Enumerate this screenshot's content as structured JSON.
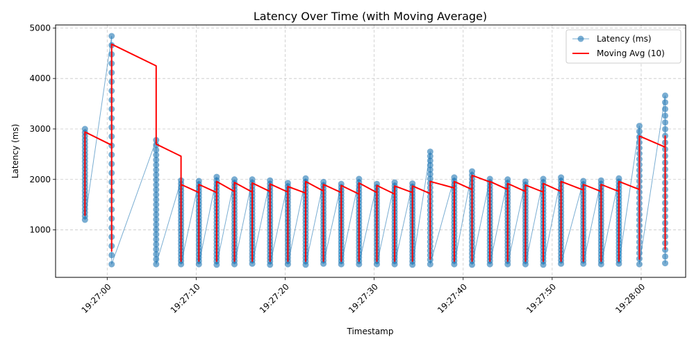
{
  "chart_data": {
    "type": "line",
    "title": "Latency Over Time (with Moving Average)",
    "xlabel": "Timestamp",
    "ylabel": "Latency (ms)",
    "x_ticks": [
      "19:27:00",
      "19:27:10",
      "19:27:20",
      "19:27:30",
      "19:27:40",
      "19:27:50",
      "19:28:00"
    ],
    "x_tick_seconds": [
      0,
      10,
      20,
      30,
      40,
      50,
      60
    ],
    "xlim_seconds": [
      -5.8,
      65.0
    ],
    "y_ticks": [
      1000,
      2000,
      3000,
      4000,
      5000
    ],
    "ylim": [
      60,
      5060
    ],
    "grid": true,
    "legend_position": "top-right",
    "colors": {
      "latency": "#1f77b4",
      "moving_avg": "#ff0000"
    },
    "series": [
      {
        "name": "Latency (ms)",
        "style": "line-marker"
      },
      {
        "name": "Moving Avg (10)",
        "style": "line"
      }
    ],
    "bursts": [
      {
        "t": -2.5,
        "min": 1200,
        "max": 3000
      },
      {
        "t": 0.5,
        "min": 320,
        "max": 4840
      },
      {
        "t": 5.5,
        "min": 320,
        "max": 2780
      },
      {
        "t": 8.3,
        "min": 320,
        "max": 1980
      },
      {
        "t": 10.3,
        "min": 320,
        "max": 1970
      },
      {
        "t": 12.3,
        "min": 310,
        "max": 2050
      },
      {
        "t": 14.3,
        "min": 320,
        "max": 2000
      },
      {
        "t": 16.3,
        "min": 330,
        "max": 2000
      },
      {
        "t": 18.3,
        "min": 310,
        "max": 1980
      },
      {
        "t": 20.3,
        "min": 320,
        "max": 1930
      },
      {
        "t": 22.3,
        "min": 310,
        "max": 2020
      },
      {
        "t": 24.3,
        "min": 330,
        "max": 1950
      },
      {
        "t": 26.3,
        "min": 320,
        "max": 1910
      },
      {
        "t": 28.3,
        "min": 320,
        "max": 2010
      },
      {
        "t": 30.3,
        "min": 320,
        "max": 1910
      },
      {
        "t": 32.3,
        "min": 320,
        "max": 1940
      },
      {
        "t": 34.3,
        "min": 310,
        "max": 1920
      },
      {
        "t": 36.3,
        "min": 320,
        "max": 2550
      },
      {
        "t": 39.0,
        "min": 320,
        "max": 2040
      },
      {
        "t": 41.0,
        "min": 310,
        "max": 2160
      },
      {
        "t": 43.0,
        "min": 320,
        "max": 2010
      },
      {
        "t": 45.0,
        "min": 320,
        "max": 2000
      },
      {
        "t": 47.0,
        "min": 320,
        "max": 1960
      },
      {
        "t": 49.0,
        "min": 310,
        "max": 2010
      },
      {
        "t": 51.0,
        "min": 330,
        "max": 2040
      },
      {
        "t": 53.5,
        "min": 330,
        "max": 1970
      },
      {
        "t": 55.5,
        "min": 320,
        "max": 1980
      },
      {
        "t": 57.5,
        "min": 330,
        "max": 2020
      },
      {
        "t": 59.8,
        "min": 320,
        "max": 3060
      },
      {
        "t": 62.7,
        "min": 340,
        "max": 3660
      }
    ],
    "moving_avg": [
      {
        "t": -2.5,
        "v": 1280
      },
      {
        "t": -2.5,
        "v": 2940
      },
      {
        "t": 0.5,
        "v": 2680
      },
      {
        "t": 0.5,
        "v": 580
      },
      {
        "t": 0.5,
        "v": 4680
      },
      {
        "t": 5.5,
        "v": 4250
      },
      {
        "t": 5.5,
        "v": 2700
      },
      {
        "t": 8.3,
        "v": 2460
      },
      {
        "t": 8.3,
        "v": 380
      },
      {
        "t": 8.3,
        "v": 1900
      },
      {
        "t": 10.3,
        "v": 1740
      },
      {
        "t": 10.3,
        "v": 380
      },
      {
        "t": 10.3,
        "v": 1900
      },
      {
        "t": 12.3,
        "v": 1740
      },
      {
        "t": 12.3,
        "v": 380
      },
      {
        "t": 12.3,
        "v": 1960
      },
      {
        "t": 14.3,
        "v": 1760
      },
      {
        "t": 14.3,
        "v": 380
      },
      {
        "t": 14.3,
        "v": 1940
      },
      {
        "t": 16.3,
        "v": 1750
      },
      {
        "t": 16.3,
        "v": 380
      },
      {
        "t": 16.3,
        "v": 1930
      },
      {
        "t": 18.3,
        "v": 1760
      },
      {
        "t": 18.3,
        "v": 380
      },
      {
        "t": 18.3,
        "v": 1910
      },
      {
        "t": 20.3,
        "v": 1750
      },
      {
        "t": 20.3,
        "v": 380
      },
      {
        "t": 20.3,
        "v": 1860
      },
      {
        "t": 22.3,
        "v": 1730
      },
      {
        "t": 22.3,
        "v": 380
      },
      {
        "t": 22.3,
        "v": 1960
      },
      {
        "t": 24.3,
        "v": 1770
      },
      {
        "t": 24.3,
        "v": 380
      },
      {
        "t": 24.3,
        "v": 1900
      },
      {
        "t": 26.3,
        "v": 1740
      },
      {
        "t": 26.3,
        "v": 380
      },
      {
        "t": 26.3,
        "v": 1880
      },
      {
        "t": 28.3,
        "v": 1710
      },
      {
        "t": 28.3,
        "v": 380
      },
      {
        "t": 28.3,
        "v": 1930
      },
      {
        "t": 30.3,
        "v": 1740
      },
      {
        "t": 30.3,
        "v": 380
      },
      {
        "t": 30.3,
        "v": 1880
      },
      {
        "t": 32.3,
        "v": 1710
      },
      {
        "t": 32.3,
        "v": 380
      },
      {
        "t": 32.3,
        "v": 1870
      },
      {
        "t": 34.3,
        "v": 1740
      },
      {
        "t": 34.3,
        "v": 380
      },
      {
        "t": 34.3,
        "v": 1870
      },
      {
        "t": 36.3,
        "v": 1720
      },
      {
        "t": 36.3,
        "v": 420
      },
      {
        "t": 36.3,
        "v": 1960
      },
      {
        "t": 39.0,
        "v": 1830
      },
      {
        "t": 39.0,
        "v": 380
      },
      {
        "t": 39.0,
        "v": 1960
      },
      {
        "t": 41.0,
        "v": 1800
      },
      {
        "t": 41.0,
        "v": 380
      },
      {
        "t": 41.0,
        "v": 2080
      },
      {
        "t": 43.0,
        "v": 1950
      },
      {
        "t": 43.0,
        "v": 380
      },
      {
        "t": 43.0,
        "v": 1960
      },
      {
        "t": 45.0,
        "v": 1800
      },
      {
        "t": 45.0,
        "v": 380
      },
      {
        "t": 45.0,
        "v": 1920
      },
      {
        "t": 47.0,
        "v": 1760
      },
      {
        "t": 47.0,
        "v": 380
      },
      {
        "t": 47.0,
        "v": 1890
      },
      {
        "t": 49.0,
        "v": 1750
      },
      {
        "t": 49.0,
        "v": 380
      },
      {
        "t": 49.0,
        "v": 1920
      },
      {
        "t": 51.0,
        "v": 1760
      },
      {
        "t": 51.0,
        "v": 380
      },
      {
        "t": 51.0,
        "v": 1960
      },
      {
        "t": 53.5,
        "v": 1790
      },
      {
        "t": 53.5,
        "v": 380
      },
      {
        "t": 53.5,
        "v": 1900
      },
      {
        "t": 55.5,
        "v": 1760
      },
      {
        "t": 55.5,
        "v": 380
      },
      {
        "t": 55.5,
        "v": 1900
      },
      {
        "t": 57.5,
        "v": 1760
      },
      {
        "t": 57.5,
        "v": 380
      },
      {
        "t": 57.5,
        "v": 1960
      },
      {
        "t": 59.8,
        "v": 1800
      },
      {
        "t": 59.8,
        "v": 420
      },
      {
        "t": 59.8,
        "v": 2860
      },
      {
        "t": 62.7,
        "v": 2640
      },
      {
        "t": 62.7,
        "v": 620
      },
      {
        "t": 62.7,
        "v": 2870
      }
    ]
  }
}
